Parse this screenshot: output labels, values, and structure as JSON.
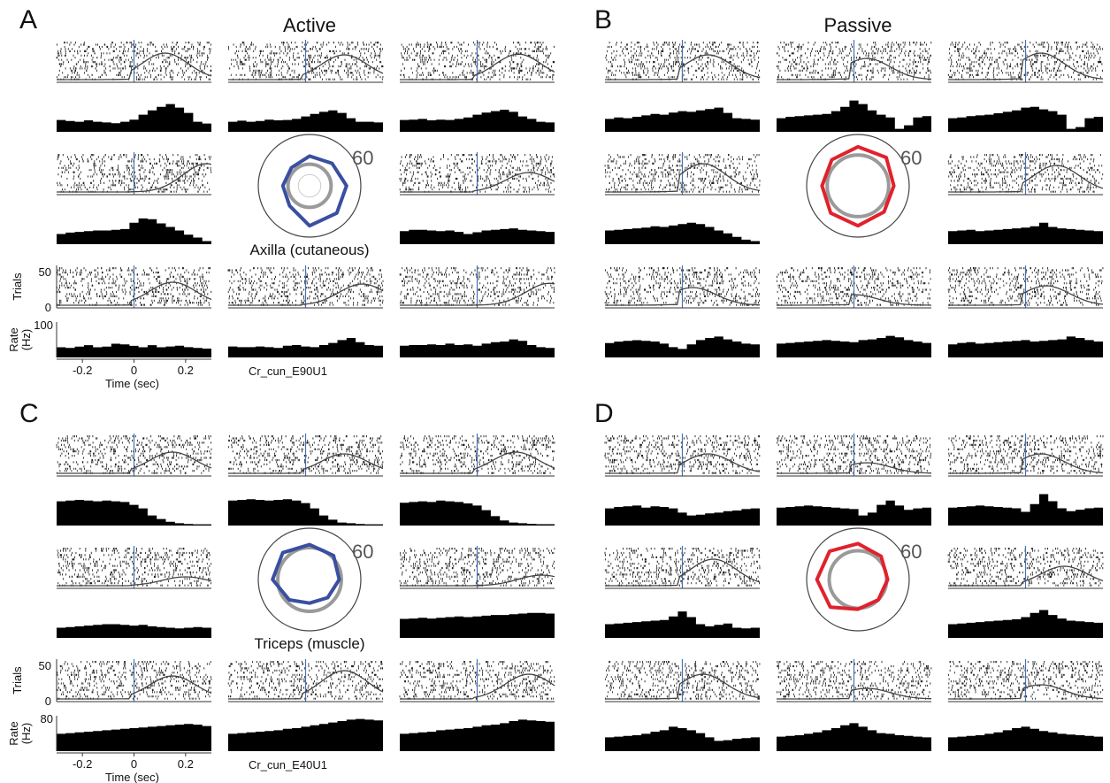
{
  "colors": {
    "raster": "#222222",
    "stimulus_line": "#4a6fb5",
    "psth_fill": "#000000",
    "active_polar": "#3a4fa0",
    "passive_polar": "#e0222d",
    "baseline_ring": "#9a9a9a",
    "outer_ring": "#444444"
  },
  "chart_data": [
    {
      "panel": "A",
      "title": "Active",
      "type": "raster-psth-grid",
      "unit_label": "Cr_cun_E90U1",
      "polar_label": "Axilla (cutaneous)",
      "polar_scale": "60",
      "polar_color": "active_polar",
      "show_axes": true,
      "raster_ylabel": "Trials",
      "raster_yticks": [
        "50",
        "0"
      ],
      "rate_ylabel": "Rate (Hz)",
      "rate_ymax_label": "100",
      "xlabel": "Time (sec)",
      "xticks": [
        "-0.2",
        "0",
        "0.2"
      ],
      "xlim": [
        -0.3,
        0.3
      ],
      "polar_radii": [
        0.62,
        0.72,
        0.75,
        0.78,
        0.55,
        0.52,
        0.5,
        0.58
      ],
      "baseline_radius": 0.42,
      "cells": [
        {
          "curve_peak": 0.12,
          "curve_amp": 0.75,
          "psth": [
            0.35,
            0.32,
            0.3,
            0.34,
            0.3,
            0.28,
            0.26,
            0.3,
            0.36,
            0.5,
            0.62,
            0.72,
            0.8,
            0.7,
            0.55,
            0.3,
            0.25
          ]
        },
        {
          "curve_peak": 0.15,
          "curve_amp": 0.7,
          "psth": [
            0.3,
            0.33,
            0.3,
            0.32,
            0.36,
            0.34,
            0.35,
            0.38,
            0.45,
            0.52,
            0.58,
            0.62,
            0.55,
            0.4,
            0.3,
            0.3,
            0.28
          ]
        },
        {
          "curve_peak": 0.16,
          "curve_amp": 0.72,
          "psth": [
            0.35,
            0.36,
            0.38,
            0.34,
            0.36,
            0.35,
            0.38,
            0.42,
            0.5,
            0.56,
            0.6,
            0.64,
            0.58,
            0.45,
            0.38,
            0.3,
            0.28
          ]
        },
        {
          "curve_peak": 0.28,
          "curve_amp": 0.8,
          "psth": [
            0.3,
            0.34,
            0.36,
            0.38,
            0.4,
            0.4,
            0.42,
            0.44,
            0.62,
            0.74,
            0.72,
            0.6,
            0.5,
            0.4,
            0.28,
            0.2,
            0.1
          ]
        },
        null,
        {
          "curve_peak": 0.2,
          "curve_amp": 0.55,
          "psth": [
            0.38,
            0.42,
            0.42,
            0.4,
            0.38,
            0.4,
            0.36,
            0.3,
            0.35,
            0.4,
            0.42,
            0.44,
            0.46,
            0.42,
            0.4,
            0.38,
            0.36
          ]
        },
        {
          "curve_peak": 0.15,
          "curve_amp": 0.65,
          "psth": [
            0.3,
            0.28,
            0.32,
            0.36,
            0.3,
            0.32,
            0.4,
            0.38,
            0.34,
            0.3,
            0.36,
            0.3,
            0.32,
            0.34,
            0.3,
            0.28,
            0.26
          ]
        },
        {
          "curve_peak": 0.22,
          "curve_amp": 0.6,
          "psth": [
            0.32,
            0.3,
            0.3,
            0.32,
            0.3,
            0.28,
            0.34,
            0.36,
            0.32,
            0.3,
            0.36,
            0.42,
            0.5,
            0.56,
            0.44,
            0.36,
            0.34
          ]
        },
        {
          "curve_peak": 0.28,
          "curve_amp": 0.62,
          "psth": [
            0.34,
            0.36,
            0.36,
            0.38,
            0.36,
            0.4,
            0.36,
            0.38,
            0.34,
            0.4,
            0.44,
            0.46,
            0.52,
            0.48,
            0.36,
            0.3,
            0.28
          ]
        }
      ]
    },
    {
      "panel": "B",
      "title": "Passive",
      "type": "raster-psth-grid",
      "unit_label": "",
      "polar_label": "",
      "polar_scale": "60",
      "polar_color": "passive_polar",
      "show_axes": false,
      "polar_radii": [
        0.78,
        0.7,
        0.72,
        0.78,
        0.75,
        0.7,
        0.72,
        0.76
      ],
      "baseline_radius": 0.6,
      "cells": [
        {
          "curve_peak": 0.1,
          "curve_amp": 0.7,
          "psth": [
            0.38,
            0.42,
            0.4,
            0.44,
            0.48,
            0.52,
            0.5,
            0.56,
            0.6,
            0.58,
            0.62,
            0.66,
            0.7,
            0.55,
            0.4,
            0.38,
            0.36
          ]
        },
        {
          "curve_peak": 0.05,
          "curve_amp": 0.6,
          "psth": [
            0.4,
            0.44,
            0.46,
            0.48,
            0.5,
            0.52,
            0.6,
            0.72,
            0.9,
            0.8,
            0.62,
            0.5,
            0.42,
            0.1,
            0.2,
            0.42,
            0.46
          ]
        },
        {
          "curve_peak": 0.06,
          "curve_amp": 0.75,
          "psth": [
            0.4,
            0.42,
            0.46,
            0.48,
            0.5,
            0.54,
            0.58,
            0.62,
            0.7,
            0.72,
            0.65,
            0.6,
            0.5,
            0.1,
            0.15,
            0.4,
            0.44
          ]
        },
        {
          "curve_peak": 0.08,
          "curve_amp": 0.8,
          "psth": [
            0.4,
            0.42,
            0.44,
            0.46,
            0.48,
            0.52,
            0.5,
            0.54,
            0.58,
            0.62,
            0.58,
            0.5,
            0.4,
            0.32,
            0.22,
            0.14,
            0.1
          ]
        },
        null,
        {
          "curve_peak": 0.12,
          "curve_amp": 0.75,
          "psth": [
            0.38,
            0.4,
            0.42,
            0.38,
            0.4,
            0.42,
            0.44,
            0.46,
            0.48,
            0.52,
            0.62,
            0.5,
            0.46,
            0.44,
            0.42,
            0.4,
            0.38
          ]
        },
        {
          "curve_peak": 0.04,
          "curve_amp": 0.5,
          "psth": [
            0.42,
            0.46,
            0.48,
            0.5,
            0.48,
            0.46,
            0.4,
            0.3,
            0.25,
            0.38,
            0.5,
            0.56,
            0.6,
            0.52,
            0.46,
            0.4,
            0.38
          ]
        },
        {
          "curve_peak": 0.0,
          "curve_amp": 0.3,
          "psth": [
            0.4,
            0.42,
            0.44,
            0.46,
            0.48,
            0.5,
            0.48,
            0.46,
            0.44,
            0.5,
            0.52,
            0.56,
            0.62,
            0.58,
            0.5,
            0.46,
            0.42
          ]
        },
        {
          "curve_peak": 0.08,
          "curve_amp": 0.55,
          "psth": [
            0.38,
            0.42,
            0.44,
            0.4,
            0.42,
            0.44,
            0.46,
            0.48,
            0.5,
            0.46,
            0.48,
            0.5,
            0.52,
            0.6,
            0.56,
            0.5,
            0.46
          ]
        }
      ]
    },
    {
      "panel": "C",
      "title": "",
      "type": "raster-psth-grid",
      "unit_label": "Cr_cun_E40U1",
      "polar_label": "Triceps (muscle)",
      "polar_scale": "60",
      "polar_color": "active_polar",
      "show_axes": true,
      "raster_ylabel": "Trials",
      "raster_yticks": [
        "50",
        "0"
      ],
      "rate_ylabel": "Rate (Hz)",
      "rate_ymax_label": "80",
      "xlabel": "Time (sec)",
      "xticks": [
        "-0.2",
        "0",
        "0.2"
      ],
      "xlim": [
        -0.3,
        0.3
      ],
      "polar_radii": [
        0.66,
        0.58,
        0.5,
        0.46,
        0.56,
        0.72,
        0.74,
        0.68
      ],
      "baseline_radius": 0.62,
      "cells": [
        {
          "curve_peak": 0.15,
          "curve_amp": 0.6,
          "psth": [
            0.7,
            0.72,
            0.74,
            0.72,
            0.7,
            0.72,
            0.7,
            0.68,
            0.6,
            0.5,
            0.3,
            0.2,
            0.12,
            0.08,
            0.06,
            0.05,
            0.05
          ]
        },
        {
          "curve_peak": 0.15,
          "curve_amp": 0.55,
          "psth": [
            0.72,
            0.74,
            0.76,
            0.74,
            0.72,
            0.74,
            0.76,
            0.72,
            0.65,
            0.5,
            0.3,
            0.18,
            0.1,
            0.08,
            0.06,
            0.05,
            0.05
          ]
        },
        {
          "curve_peak": 0.15,
          "curve_amp": 0.6,
          "psth": [
            0.66,
            0.68,
            0.7,
            0.68,
            0.72,
            0.7,
            0.68,
            0.64,
            0.58,
            0.45,
            0.28,
            0.16,
            0.1,
            0.08,
            0.06,
            0.05,
            0.05
          ]
        },
        {
          "curve_peak": 0.2,
          "curve_amp": 0.25,
          "psth": [
            0.3,
            0.32,
            0.34,
            0.36,
            0.38,
            0.4,
            0.4,
            0.38,
            0.36,
            0.38,
            0.34,
            0.32,
            0.3,
            0.28,
            0.3,
            0.32,
            0.3
          ]
        },
        null,
        {
          "curve_peak": 0.25,
          "curve_amp": 0.3,
          "psth": [
            0.55,
            0.56,
            0.58,
            0.56,
            0.58,
            0.6,
            0.62,
            0.6,
            0.62,
            0.64,
            0.66,
            0.66,
            0.68,
            0.7,
            0.72,
            0.72,
            0.7
          ]
        },
        {
          "curve_peak": 0.15,
          "curve_amp": 0.65,
          "psth": [
            0.5,
            0.52,
            0.54,
            0.56,
            0.58,
            0.6,
            0.62,
            0.64,
            0.66,
            0.68,
            0.7,
            0.72,
            0.74,
            0.76,
            0.78,
            0.76,
            0.72
          ]
        },
        {
          "curve_peak": 0.15,
          "curve_amp": 0.8,
          "psth": [
            0.5,
            0.52,
            0.54,
            0.56,
            0.58,
            0.6,
            0.64,
            0.66,
            0.7,
            0.74,
            0.78,
            0.82,
            0.86,
            0.9,
            0.92,
            0.9,
            0.88
          ]
        },
        {
          "curve_peak": 0.2,
          "curve_amp": 0.7,
          "psth": [
            0.5,
            0.52,
            0.54,
            0.56,
            0.6,
            0.62,
            0.64,
            0.66,
            0.7,
            0.74,
            0.76,
            0.8,
            0.86,
            0.9,
            0.88,
            0.86,
            0.84
          ]
        }
      ]
    },
    {
      "panel": "D",
      "title": "",
      "type": "raster-psth-grid",
      "unit_label": "",
      "polar_label": "",
      "polar_scale": "60",
      "polar_color": "passive_polar",
      "show_axes": false,
      "polar_radii": [
        0.64,
        0.58,
        0.56,
        0.58,
        0.76,
        0.8,
        0.78,
        0.7
      ],
      "baseline_radius": 0.56,
      "cells": [
        {
          "curve_peak": 0.1,
          "curve_amp": 0.55,
          "psth": [
            0.5,
            0.54,
            0.56,
            0.58,
            0.52,
            0.56,
            0.54,
            0.5,
            0.38,
            0.3,
            0.32,
            0.36,
            0.38,
            0.42,
            0.44,
            0.48,
            0.5
          ]
        },
        {
          "curve_peak": 0.05,
          "curve_amp": 0.3,
          "psth": [
            0.52,
            0.54,
            0.56,
            0.58,
            0.56,
            0.54,
            0.52,
            0.5,
            0.48,
            0.3,
            0.38,
            0.6,
            0.72,
            0.58,
            0.46,
            0.5,
            0.52
          ]
        },
        {
          "curve_peak": 0.06,
          "curve_amp": 0.55,
          "psth": [
            0.52,
            0.54,
            0.56,
            0.58,
            0.56,
            0.54,
            0.52,
            0.5,
            0.4,
            0.62,
            0.9,
            0.7,
            0.5,
            0.42,
            0.46,
            0.5,
            0.52
          ]
        },
        {
          "curve_peak": 0.12,
          "curve_amp": 0.75,
          "psth": [
            0.4,
            0.42,
            0.44,
            0.46,
            0.48,
            0.5,
            0.52,
            0.62,
            0.76,
            0.6,
            0.4,
            0.34,
            0.38,
            0.42,
            0.3,
            0.28,
            0.3
          ]
        },
        null,
        {
          "curve_peak": 0.15,
          "curve_amp": 0.55,
          "psth": [
            0.4,
            0.42,
            0.44,
            0.46,
            0.48,
            0.5,
            0.52,
            0.54,
            0.6,
            0.72,
            0.8,
            0.66,
            0.56,
            0.5,
            0.48,
            0.46,
            0.44
          ]
        },
        {
          "curve_peak": 0.08,
          "curve_amp": 0.7,
          "psth": [
            0.4,
            0.42,
            0.44,
            0.46,
            0.5,
            0.56,
            0.6,
            0.7,
            0.66,
            0.6,
            0.52,
            0.4,
            0.3,
            0.32,
            0.36,
            0.38,
            0.4
          ]
        },
        {
          "curve_peak": 0.05,
          "curve_amp": 0.3,
          "psth": [
            0.42,
            0.44,
            0.46,
            0.5,
            0.54,
            0.6,
            0.66,
            0.74,
            0.8,
            0.7,
            0.6,
            0.52,
            0.5,
            0.46,
            0.44,
            0.42,
            0.4
          ]
        },
        {
          "curve_peak": 0.06,
          "curve_amp": 0.4,
          "psth": [
            0.4,
            0.42,
            0.44,
            0.46,
            0.5,
            0.54,
            0.6,
            0.66,
            0.7,
            0.64,
            0.58,
            0.54,
            0.5,
            0.48,
            0.46,
            0.44,
            0.42
          ]
        }
      ]
    }
  ]
}
